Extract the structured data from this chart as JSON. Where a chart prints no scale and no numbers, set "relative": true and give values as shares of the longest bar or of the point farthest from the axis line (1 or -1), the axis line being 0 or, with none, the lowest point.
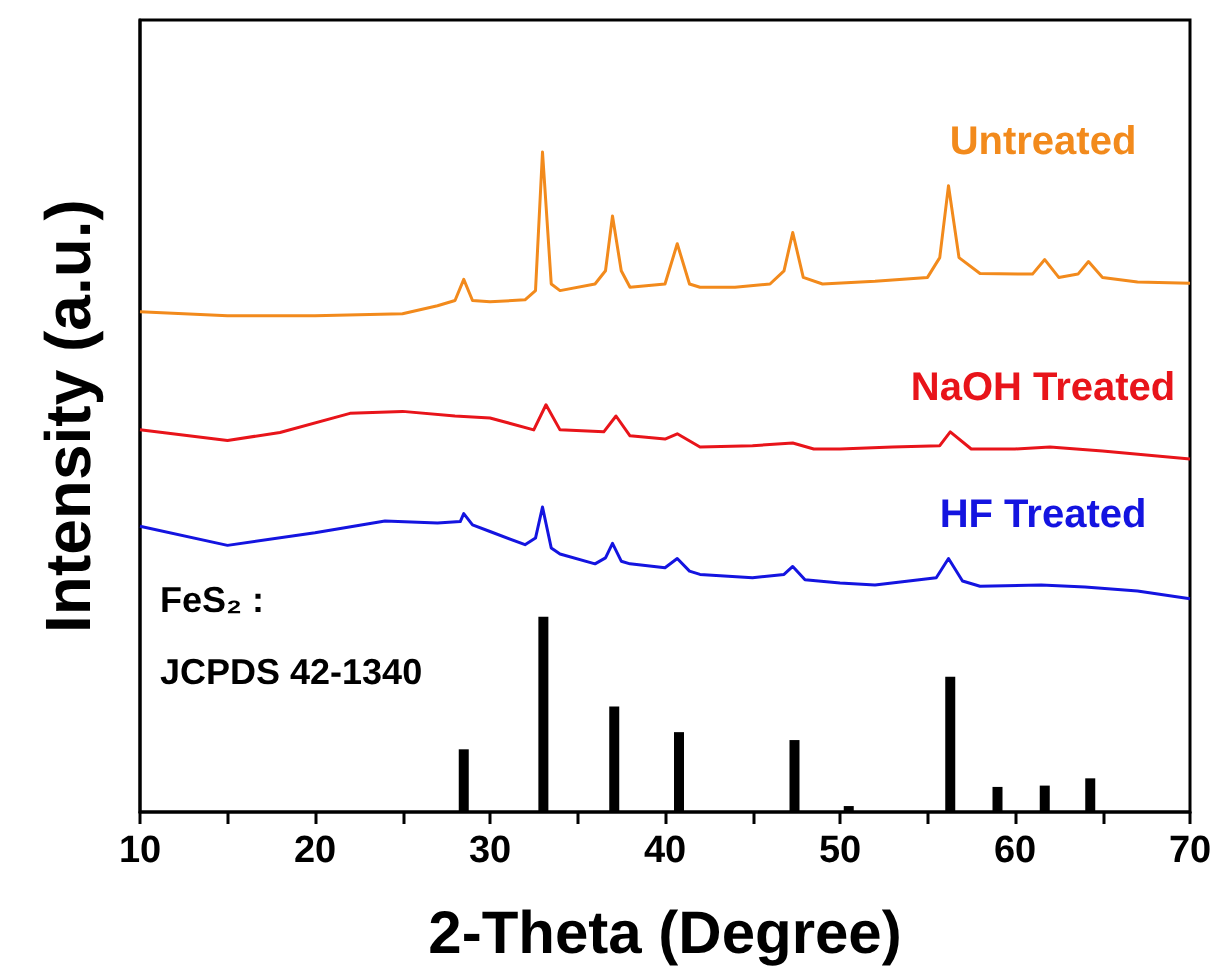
{
  "chart_data": {
    "type": "line",
    "relative": true,
    "xlabel": "2-Theta (Degree)",
    "ylabel": "Intensity (a.u.)",
    "xlim": [
      10,
      70
    ],
    "xticks": [
      10,
      {
        "value": 15,
        "label": null
      },
      20,
      {
        "value": 25,
        "label": null
      },
      30,
      {
        "value": 35,
        "label": null
      },
      40,
      {
        "value": 45,
        "label": null
      },
      50,
      {
        "value": 55,
        "label": null
      },
      60,
      {
        "value": 65,
        "label": null
      },
      70
    ],
    "grid": false,
    "legend": false,
    "tick_labels": "x",
    "marker": "none",
    "annotations": [
      "FeS₂ :",
      "JCPDS 42-1340"
    ],
    "series": [
      {
        "name": "Untreated",
        "color": "#f28a1c",
        "x": [
          10,
          15,
          20,
          25,
          27,
          28.0,
          28.5,
          29.0,
          30,
          32.0,
          32.6,
          33.0,
          33.5,
          34,
          36,
          36.6,
          37.0,
          37.5,
          38,
          40,
          40.7,
          41.4,
          42,
          44,
          46,
          46.8,
          47.3,
          47.9,
          49,
          52,
          55,
          55.7,
          56.2,
          56.8,
          58,
          61,
          61.7,
          62.5,
          63.6,
          64.2,
          65,
          67,
          70
        ],
        "values": [
          0.758,
          0.752,
          0.752,
          0.755,
          0.767,
          0.775,
          0.807,
          0.775,
          0.773,
          0.776,
          0.79,
          1.0,
          0.8,
          0.79,
          0.8,
          0.82,
          0.903,
          0.82,
          0.795,
          0.8,
          0.861,
          0.8,
          0.795,
          0.795,
          0.8,
          0.82,
          0.878,
          0.81,
          0.8,
          0.804,
          0.81,
          0.84,
          0.949,
          0.84,
          0.816,
          0.815,
          0.837,
          0.81,
          0.815,
          0.834,
          0.81,
          0.803,
          0.801
        ]
      },
      {
        "name": "NaOH Treated",
        "color": "#e8141a",
        "x": [
          10,
          15,
          18,
          22,
          25,
          28,
          30,
          32.5,
          33.2,
          34,
          36.5,
          37.2,
          38,
          40,
          40.7,
          42,
          45,
          47.3,
          48.5,
          50,
          53,
          55.7,
          56.3,
          57.5,
          60,
          62,
          65,
          70
        ],
        "values": [
          0.579,
          0.563,
          0.575,
          0.604,
          0.607,
          0.6,
          0.597,
          0.579,
          0.617,
          0.579,
          0.576,
          0.6,
          0.57,
          0.565,
          0.573,
          0.553,
          0.555,
          0.559,
          0.55,
          0.55,
          0.553,
          0.555,
          0.576,
          0.55,
          0.55,
          0.553,
          0.547,
          0.535
        ]
      },
      {
        "name": "HF Treated",
        "color": "#1414e0",
        "x": [
          10,
          15,
          20,
          24,
          27,
          28.3,
          28.5,
          29,
          30,
          32,
          32.6,
          33.0,
          33.5,
          34,
          36,
          36.6,
          37.0,
          37.5,
          38,
          40,
          40.7,
          41.4,
          42,
          45,
          46.8,
          47.3,
          48,
          50,
          52,
          55.5,
          56.2,
          57,
          58,
          61.5,
          64,
          67,
          70
        ],
        "values": [
          0.433,
          0.404,
          0.423,
          0.441,
          0.438,
          0.44,
          0.452,
          0.435,
          0.425,
          0.405,
          0.415,
          0.462,
          0.4,
          0.391,
          0.376,
          0.385,
          0.407,
          0.38,
          0.376,
          0.37,
          0.384,
          0.365,
          0.36,
          0.355,
          0.36,
          0.372,
          0.352,
          0.347,
          0.344,
          0.355,
          0.384,
          0.35,
          0.342,
          0.344,
          0.341,
          0.335,
          0.323
        ]
      },
      {
        "type": "bar",
        "color": "#000000",
        "x": [
          28.5,
          33.05,
          37.1,
          40.8,
          47.4,
          50.5,
          56.3,
          59.0,
          61.7,
          64.3
        ],
        "values": [
          0.095,
          0.296,
          0.16,
          0.121,
          0.109,
          0.009,
          0.205,
          0.038,
          0.04,
          0.051
        ]
      }
    ]
  }
}
